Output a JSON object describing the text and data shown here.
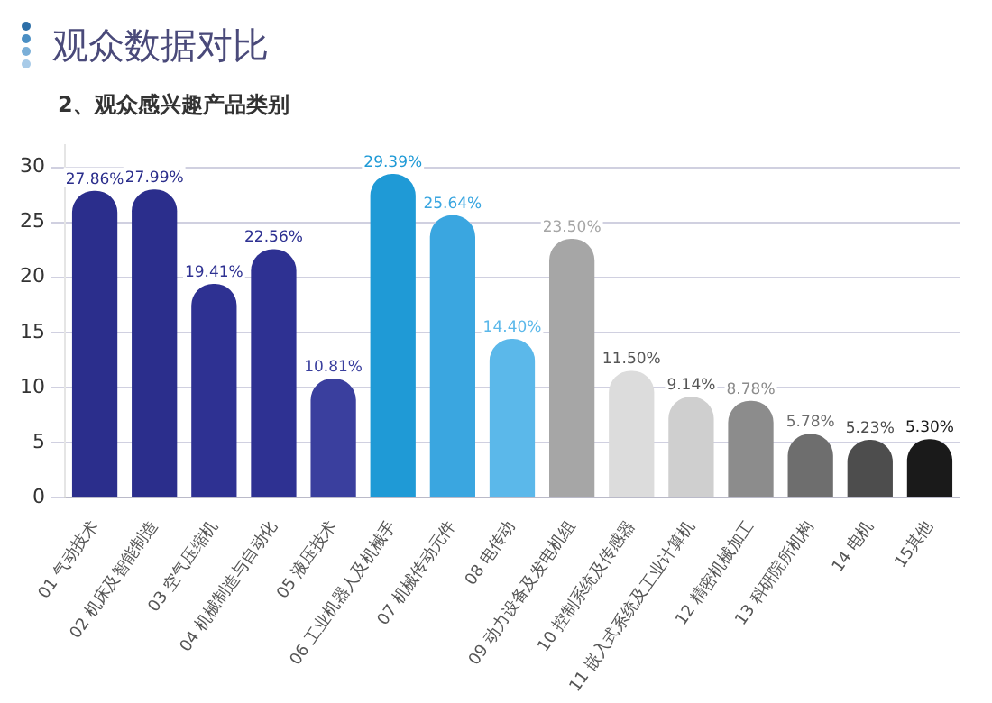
{
  "chart_data": {
    "type": "bar",
    "title": "观众数据对比",
    "subtitle": "2、观众感兴趣产品类别",
    "categories": [
      "01 气动技术",
      "02 机床及智能制造",
      "03 空气压缩机",
      "04 机械制造与自动化",
      "05 液压技术",
      "06 工业机器人及机械手",
      "07 机械传动元件",
      "08 电传动",
      "09 动力设备及发电机组",
      "10 控制系统及传感器",
      "11 嵌入式系统及工业计算机",
      "12 精密机械加工",
      "13 科研院所机构",
      "14 电机",
      "15其他"
    ],
    "values": [
      27.86,
      27.99,
      19.41,
      22.56,
      10.81,
      29.39,
      25.64,
      14.4,
      23.5,
      11.5,
      9.14,
      8.78,
      5.78,
      5.23,
      5.3
    ],
    "value_labels": [
      "27.86%",
      "27.99%",
      "19.41%",
      "22.56%",
      "10.81%",
      "29.39%",
      "25.64%",
      "14.40%",
      "23.50%",
      "11.50%",
      "9.14%",
      "8.78%",
      "5.78%",
      "5.23%",
      "5.30%"
    ],
    "colors": [
      "#2b2e8c",
      "#2b2e8c",
      "#2e3192",
      "#2e3192",
      "#3a3f9e",
      "#1f9ad6",
      "#3aa6e0",
      "#5bb8ea",
      "#a6a6a6",
      "#dcdcdc",
      "#cfcfcf",
      "#8c8c8c",
      "#6e6e6e",
      "#4d4d4d",
      "#1a1a1a"
    ],
    "ylim": [
      0,
      32
    ],
    "yticks": [
      0,
      5,
      10,
      15,
      20,
      25,
      30
    ],
    "grid": "y",
    "legend": false
  }
}
